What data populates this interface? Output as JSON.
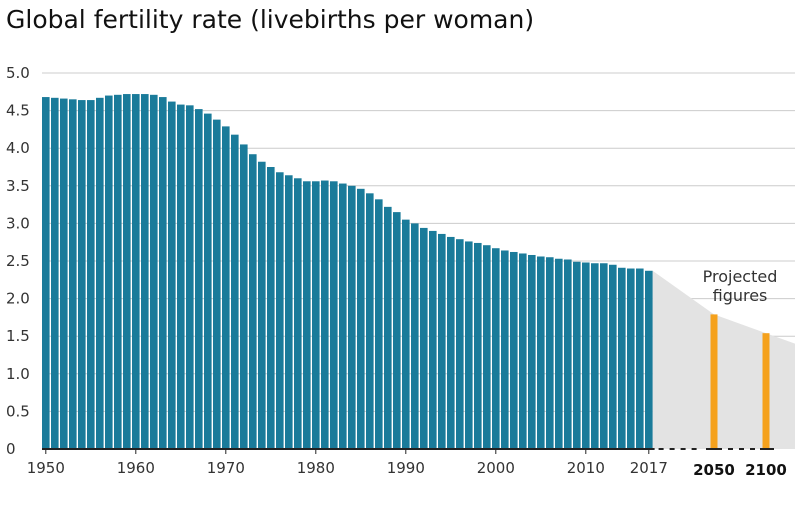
{
  "chart_data": {
    "type": "bar",
    "title": "Global fertility rate (livebirths per woman)",
    "ylim": [
      0,
      5.0
    ],
    "y_ticks": [
      "5.0",
      "4.5",
      "4.0",
      "3.5",
      "3.0",
      "2.5",
      "2.0",
      "1.5",
      "1.0",
      "0.5",
      "0"
    ],
    "x_tick_labels": [
      "1950",
      "1960",
      "1970",
      "1980",
      "1990",
      "2000",
      "2010",
      "2017"
    ],
    "x": [
      1950,
      1951,
      1952,
      1953,
      1954,
      1955,
      1956,
      1957,
      1958,
      1959,
      1960,
      1961,
      1962,
      1963,
      1964,
      1965,
      1966,
      1967,
      1968,
      1969,
      1970,
      1971,
      1972,
      1973,
      1974,
      1975,
      1976,
      1977,
      1978,
      1979,
      1980,
      1981,
      1982,
      1983,
      1984,
      1985,
      1986,
      1987,
      1988,
      1989,
      1990,
      1991,
      1992,
      1993,
      1994,
      1995,
      1996,
      1997,
      1998,
      1999,
      2000,
      2001,
      2002,
      2003,
      2004,
      2005,
      2006,
      2007,
      2008,
      2009,
      2010,
      2011,
      2012,
      2013,
      2014,
      2015,
      2016,
      2017
    ],
    "values": [
      4.68,
      4.67,
      4.66,
      4.65,
      4.64,
      4.64,
      4.67,
      4.7,
      4.71,
      4.72,
      4.72,
      4.72,
      4.71,
      4.68,
      4.62,
      4.58,
      4.57,
      4.52,
      4.46,
      4.38,
      4.29,
      4.18,
      4.05,
      3.92,
      3.82,
      3.75,
      3.68,
      3.64,
      3.6,
      3.56,
      3.56,
      3.57,
      3.56,
      3.53,
      3.5,
      3.46,
      3.4,
      3.32,
      3.22,
      3.15,
      3.05,
      3.0,
      2.94,
      2.9,
      2.86,
      2.82,
      2.79,
      2.76,
      2.74,
      2.71,
      2.67,
      2.64,
      2.62,
      2.6,
      2.58,
      2.56,
      2.55,
      2.53,
      2.52,
      2.49,
      2.48,
      2.47,
      2.47,
      2.45,
      2.41,
      2.4,
      2.4,
      2.37
    ],
    "projected": {
      "label": "Projected figures",
      "label_lines": [
        "Projected",
        "figures"
      ],
      "points": [
        {
          "year": "2050",
          "value": 1.79
        },
        {
          "year": "2100",
          "value": 1.54
        }
      ]
    },
    "colors": {
      "bar": "#1a7b9a",
      "projected_bar": "#f5a11c",
      "projection_band": "#e3e3e3",
      "grid": "#cccccc",
      "axis": "#222222"
    }
  }
}
